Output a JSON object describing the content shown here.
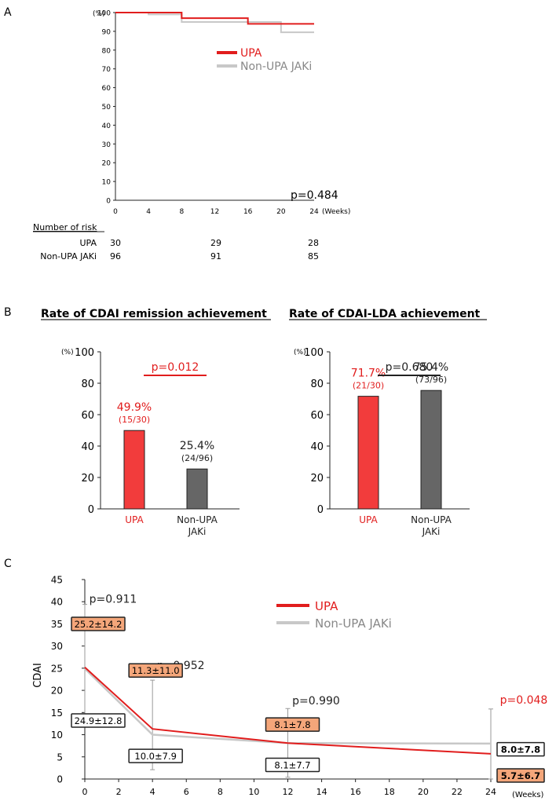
{
  "colors": {
    "upa": "#e11d1d",
    "non_upa": "#c8c8c8",
    "bar_upa": "#f23c3c",
    "bar_non": "#666666",
    "box_orange": "#f4a67a"
  },
  "chart_data": [
    {
      "type": "line",
      "panel_label": "A",
      "ylabel": "(%)",
      "xlabel": "(Weeks)",
      "xlim": [
        0,
        24
      ],
      "ylim": [
        0,
        100
      ],
      "xticks": [
        0,
        4,
        8,
        12,
        16,
        20,
        24
      ],
      "yticks": [
        0,
        10,
        20,
        30,
        40,
        50,
        60,
        70,
        80,
        90,
        100
      ],
      "step": true,
      "series": [
        {
          "name": "UPA",
          "x": [
            0,
            8,
            16,
            24
          ],
          "y": [
            100,
            97,
            94,
            94
          ]
        },
        {
          "name": "Non-UPA JAKi",
          "x": [
            0,
            4,
            8,
            20,
            24
          ],
          "y": [
            100,
            99,
            95,
            89.5,
            89.5
          ]
        }
      ],
      "annotation": "p=0.484",
      "risk_table": {
        "header": "Number of risk",
        "rows": [
          {
            "label": "UPA",
            "values": [
              "30",
              "29",
              "28"
            ]
          },
          {
            "label": "Non-UPA JAKi",
            "values": [
              "96",
              "91",
              "85"
            ]
          }
        ]
      }
    },
    {
      "type": "bar",
      "panel_label": "B",
      "title": "Rate of CDAI remission achievement",
      "ylabel": "(%)",
      "ylim": [
        0,
        100
      ],
      "yticks": [
        0,
        20,
        40,
        60,
        80,
        100
      ],
      "categories": [
        "UPA",
        "Non-UPA\nJAKi"
      ],
      "values": [
        49.9,
        25.4
      ],
      "value_labels": [
        "49.9%",
        "25.4%"
      ],
      "count_labels": [
        "(15/30)",
        "(24/96)"
      ],
      "p_value": "p=0.012",
      "p_color": "red"
    },
    {
      "type": "bar",
      "title": "Rate of CDAI-LDA achievement",
      "ylabel": "(%)",
      "ylim": [
        0,
        100
      ],
      "yticks": [
        0,
        20,
        40,
        60,
        80,
        100
      ],
      "categories": [
        "UPA",
        "Non-UPA\nJAKi"
      ],
      "values": [
        71.7,
        75.4
      ],
      "value_labels": [
        "71.7%",
        "75.4%"
      ],
      "count_labels": [
        "(21/30)",
        "(73/96)"
      ],
      "p_value": "p=0.680",
      "p_color": "black"
    },
    {
      "type": "line",
      "panel_label": "C",
      "ylabel": "CDAI",
      "xlabel": "(Weeks)",
      "xlim": [
        0,
        24
      ],
      "ylim": [
        0,
        45
      ],
      "xticks": [
        0,
        2,
        4,
        6,
        8,
        10,
        12,
        14,
        16,
        18,
        20,
        22,
        24
      ],
      "yticks": [
        0,
        5,
        10,
        15,
        20,
        25,
        30,
        35,
        40,
        45
      ],
      "series": [
        {
          "name": "UPA",
          "x": [
            0,
            4,
            12,
            24
          ],
          "y": [
            25.2,
            11.3,
            8.1,
            5.7
          ]
        },
        {
          "name": "Non-UPA JAKi",
          "x": [
            0,
            4,
            12,
            24
          ],
          "y": [
            24.9,
            10.0,
            8.1,
            8.0
          ]
        }
      ],
      "error_bars": [
        {
          "x": 0,
          "low": 12.1,
          "high": 39.4
        },
        {
          "x": 4,
          "low": 2.1,
          "high": 22.3
        },
        {
          "x": 12,
          "low": 0.4,
          "high": 15.9
        },
        {
          "x": 24,
          "low": 0,
          "high": 15.8
        }
      ],
      "p_values": [
        {
          "x": 0,
          "text": "p=0.911"
        },
        {
          "x": 4,
          "text": "p=0.952"
        },
        {
          "x": 12,
          "text": "p=0.990"
        },
        {
          "x": 24,
          "text": "p=0.048"
        }
      ],
      "upa_labels": [
        "25.2±14.2",
        "11.3±11.0",
        "8.1±7.8",
        "5.7±6.7"
      ],
      "non_upa_labels": [
        "24.9±12.8",
        "10.0±7.9",
        "8.1±7.7",
        "8.0±7.8"
      ]
    }
  ]
}
